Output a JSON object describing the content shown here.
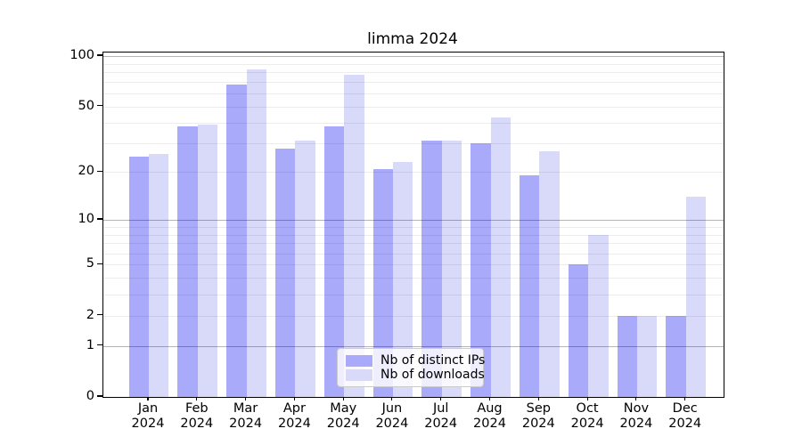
{
  "chart_data": {
    "type": "bar",
    "title": "limma 2024",
    "y_scale": "log1p",
    "ylim": [
      0,
      100
    ],
    "y_ticks": [
      0,
      1,
      2,
      5,
      10,
      20,
      50,
      100
    ],
    "grid_minor_values": [
      2,
      3,
      4,
      5,
      6,
      7,
      8,
      9,
      20,
      30,
      40,
      50,
      60,
      70,
      80,
      90
    ],
    "grid_major_values": [
      1,
      10,
      100
    ],
    "categories": [
      "Jan",
      "Feb",
      "Mar",
      "Apr",
      "May",
      "Jun",
      "Jul",
      "Aug",
      "Sep",
      "Oct",
      "Nov",
      "Dec"
    ],
    "year_label": "2024",
    "series": [
      {
        "name": "Nb of distinct IPs",
        "color": "#aaaafa",
        "values": [
          25,
          38,
          68,
          28,
          38,
          21,
          31,
          30,
          19,
          5,
          2,
          2
        ]
      },
      {
        "name": "Nb of downloads",
        "color": "#d9d9fa",
        "values": [
          26,
          39,
          83,
          31,
          77,
          23,
          31,
          43,
          27,
          8,
          2,
          14
        ]
      }
    ],
    "legend_position": "bottom-center",
    "xlabel": "",
    "ylabel": ""
  },
  "colors": {
    "distinct_ips": "#aaaafa",
    "downloads": "#d9d9fa",
    "axis": "#000000",
    "grid_major": "#b5b5b5",
    "grid_minor": "#ececec",
    "legend_border": "#cccccc",
    "background": "#ffffff",
    "text": "#000000"
  }
}
